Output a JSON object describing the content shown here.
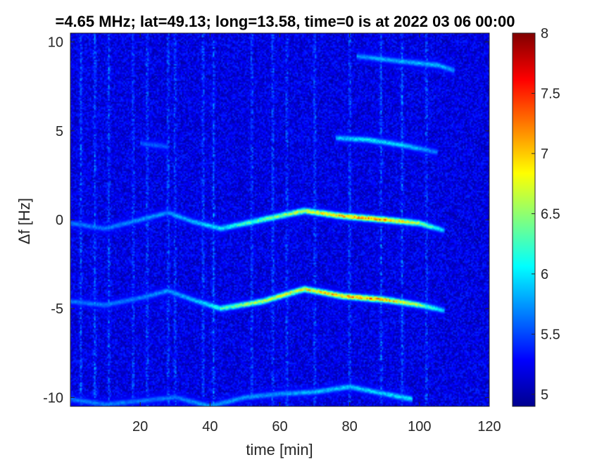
{
  "chart_data": {
    "type": "heatmap",
    "title": "=4.65 MHz;  lat=49.13; long=13.58, time=0 is at 2022 03 06 00:00",
    "xlabel": "time [min]",
    "ylabel": "Δf [Hz]",
    "xlim": [
      0,
      120
    ],
    "ylim": [
      -10.5,
      10.5
    ],
    "x_ticks": [
      20,
      40,
      60,
      80,
      100,
      120
    ],
    "y_ticks": [
      -10,
      -5,
      0,
      5,
      10
    ],
    "colorbar": {
      "colormap": "jet",
      "range": [
        4.9,
        8.0
      ],
      "ticks": [
        5,
        5.5,
        6,
        6.5,
        7,
        7.5,
        8
      ]
    },
    "background_level": 5.1,
    "traces": [
      {
        "name": "",
        "points": [
          [
            0,
            -0.2
          ],
          [
            10,
            -0.5
          ],
          [
            20,
            0.0
          ],
          [
            28,
            0.4
          ],
          [
            35,
            -0.1
          ],
          [
            43,
            -0.5
          ],
          [
            55,
            0.0
          ],
          [
            67,
            0.5
          ],
          [
            78,
            0.2
          ],
          [
            90,
            0.0
          ],
          [
            100,
            -0.2
          ],
          [
            107,
            -0.6
          ]
        ],
        "intensity": [
          5.6,
          5.6,
          5.7,
          5.7,
          5.8,
          6.0,
          6.4,
          6.8,
          7.1,
          7.3,
          6.6,
          5.8
        ]
      },
      {
        "name": "",
        "points": [
          [
            0,
            -4.6
          ],
          [
            10,
            -4.8
          ],
          [
            20,
            -4.4
          ],
          [
            28,
            -4.0
          ],
          [
            35,
            -4.5
          ],
          [
            43,
            -5.0
          ],
          [
            55,
            -4.6
          ],
          [
            67,
            -3.9
          ],
          [
            78,
            -4.3
          ],
          [
            90,
            -4.5
          ],
          [
            100,
            -4.8
          ],
          [
            107,
            -5.1
          ]
        ],
        "intensity": [
          5.6,
          5.6,
          5.6,
          5.7,
          5.8,
          6.2,
          6.7,
          6.9,
          7.2,
          7.2,
          6.5,
          5.8
        ]
      },
      {
        "name": "",
        "points": [
          [
            76,
            4.6
          ],
          [
            85,
            4.5
          ],
          [
            95,
            4.2
          ],
          [
            105,
            3.8
          ]
        ],
        "intensity": [
          5.8,
          6.0,
          5.9,
          5.6
        ]
      },
      {
        "name": "",
        "points": [
          [
            20,
            4.3
          ],
          [
            28,
            4.1
          ]
        ],
        "intensity": [
          5.5,
          5.5
        ]
      },
      {
        "name": "",
        "points": [
          [
            82,
            9.2
          ],
          [
            95,
            8.9
          ],
          [
            105,
            8.7
          ],
          [
            110,
            8.4
          ]
        ],
        "intensity": [
          5.7,
          5.8,
          5.8,
          5.7
        ]
      },
      {
        "name": "",
        "points": [
          [
            0,
            -10.1
          ],
          [
            10,
            -10.4
          ],
          [
            20,
            -10.2
          ],
          [
            30,
            -10.0
          ],
          [
            40,
            -10.5
          ],
          [
            50,
            -10.0
          ],
          [
            60,
            -9.8
          ],
          [
            70,
            -9.7
          ],
          [
            80,
            -9.4
          ],
          [
            90,
            -9.8
          ],
          [
            98,
            -10.1
          ]
        ],
        "intensity": [
          5.6,
          5.6,
          5.6,
          5.6,
          5.7,
          5.7,
          5.7,
          5.8,
          5.9,
          5.9,
          6.0
        ]
      }
    ],
    "vertical_streaks_min": [
      3,
      7,
      11,
      18,
      22,
      28,
      30,
      38,
      41,
      52,
      58,
      62,
      70,
      80,
      89,
      95,
      102
    ]
  }
}
